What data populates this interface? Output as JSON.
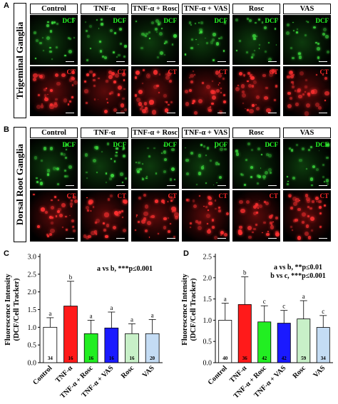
{
  "panel_labels": [
    "A",
    "B",
    "C",
    "D"
  ],
  "groups": [
    "Control",
    "TNF-α",
    "TNF-α + Rosc",
    "TNF-α + VAS",
    "Rosc",
    "VAS"
  ],
  "row_labels": {
    "top": "Trigeminal Ganglia",
    "bottom": "Dorsal Root Ganglia"
  },
  "stain_tags": {
    "green": "DCF",
    "red": "CT"
  },
  "colors": {
    "green_channel": "#27ff27",
    "red_channel": "#ff2a2a"
  },
  "chart_data": [
    {
      "type": "bar",
      "panel": "C",
      "categories": [
        "Control",
        "TNF-α",
        "TNF-α + Rosc",
        "TNF-α + VAS",
        "Rosc",
        "VAS"
      ],
      "values": [
        1.0,
        1.6,
        0.82,
        0.98,
        0.82,
        0.82
      ],
      "errors": [
        0.27,
        0.7,
        0.38,
        0.45,
        0.28,
        0.4
      ],
      "letters": [
        "a",
        "b",
        "a",
        "a",
        "a",
        "a"
      ],
      "n": [
        "34",
        "16",
        "16",
        "16",
        "16",
        "20"
      ],
      "colors": [
        "#ffffff",
        "#ff1a1a",
        "#22ee22",
        "#1a1aff",
        "#c8f0c8",
        "#c4dcf4"
      ],
      "ylabel": "Fluorescence Intensity (DCF/Cell Tracker)",
      "yticks": [
        "0.0",
        "0.5",
        "1.0",
        "1.5",
        "2.0",
        "2.5",
        "3.0"
      ],
      "ylim": [
        0,
        3.0
      ],
      "annotation": [
        "a vs b, ***p≤0.001"
      ]
    },
    {
      "type": "bar",
      "panel": "D",
      "categories": [
        "Control",
        "TNF-α",
        "TNF-α + Rosc",
        "TNF-α + VAS",
        "Rosc",
        "VAS"
      ],
      "values": [
        1.0,
        1.37,
        0.96,
        0.93,
        1.03,
        0.83
      ],
      "errors": [
        0.4,
        0.65,
        0.38,
        0.3,
        0.43,
        0.28
      ],
      "letters": [
        "a",
        "b",
        "c",
        "c",
        "a",
        "c"
      ],
      "n": [
        "40",
        "36",
        "42",
        "42",
        "59",
        "34"
      ],
      "colors": [
        "#ffffff",
        "#ff1a1a",
        "#22ee22",
        "#1a1aff",
        "#c8f0c8",
        "#c4dcf4"
      ],
      "ylabel": "Fluorescence Intensity (DCF/Cell Tracker)",
      "yticks": [
        "0.0",
        "0.5",
        "1.0",
        "1.5",
        "2.0",
        "2.5"
      ],
      "ylim": [
        0,
        2.5
      ],
      "annotation": [
        "a vs b, **p≤0.01",
        "b vs c, ***p≤0.001"
      ]
    }
  ]
}
